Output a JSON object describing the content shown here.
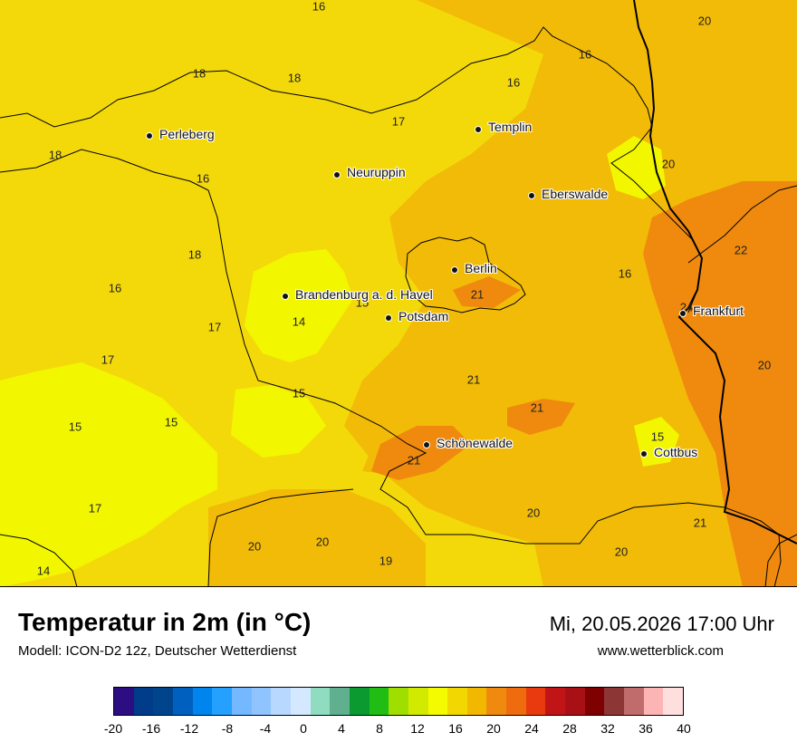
{
  "title": "Temperatur in 2m (in °C)",
  "model": "Modell: ICON-D2 12z, Deutscher Wetterdienst",
  "datetime": "Mi, 20.05.2026 17:00 Uhr",
  "website": "www.wetterblick.com",
  "cities": [
    {
      "name": "Perleberg"
    },
    {
      "name": "Templin"
    },
    {
      "name": "Neuruppin"
    },
    {
      "name": "Eberswalde"
    },
    {
      "name": "Berlin"
    },
    {
      "name": "Brandenburg a. d. Havel"
    },
    {
      "name": "Potsdam"
    },
    {
      "name": "Frankfurt"
    },
    {
      "name": "Schönewalde"
    },
    {
      "name": "Cottbus"
    }
  ],
  "map_values": [
    "16",
    "20",
    "16",
    "18",
    "18",
    "16",
    "17",
    "18",
    "16",
    "20",
    "22",
    "18",
    "16",
    "16",
    "15",
    "21",
    "14",
    "17",
    "24",
    "17",
    "20",
    "21",
    "21",
    "15",
    "15",
    "15",
    "15",
    "21",
    "17",
    "20",
    "21",
    "20",
    "20",
    "20",
    "19",
    "14"
  ],
  "colorbar": {
    "colors": [
      "#2c0d82",
      "#003c8a",
      "#00458c",
      "#0060c0",
      "#0084ee",
      "#24a0ff",
      "#74b8ff",
      "#90c4ff",
      "#b8d8ff",
      "#d4e8ff",
      "#90dcc0",
      "#60b090",
      "#0a9a30",
      "#20be14",
      "#a0de00",
      "#d2ea00",
      "#f4fa00",
      "#f2d800",
      "#f2b800",
      "#ef8a0e",
      "#ee6c0e",
      "#e83a0e",
      "#c01416",
      "#a81016",
      "#7e0000",
      "#8c3636",
      "#c06c6c",
      "#fcb4b4",
      "#ffdede"
    ],
    "ticks": [
      "-20",
      "-16",
      "-12",
      "-8",
      "-4",
      "0",
      "4",
      "8",
      "12",
      "16",
      "20",
      "24",
      "28",
      "32",
      "36",
      "40"
    ]
  }
}
